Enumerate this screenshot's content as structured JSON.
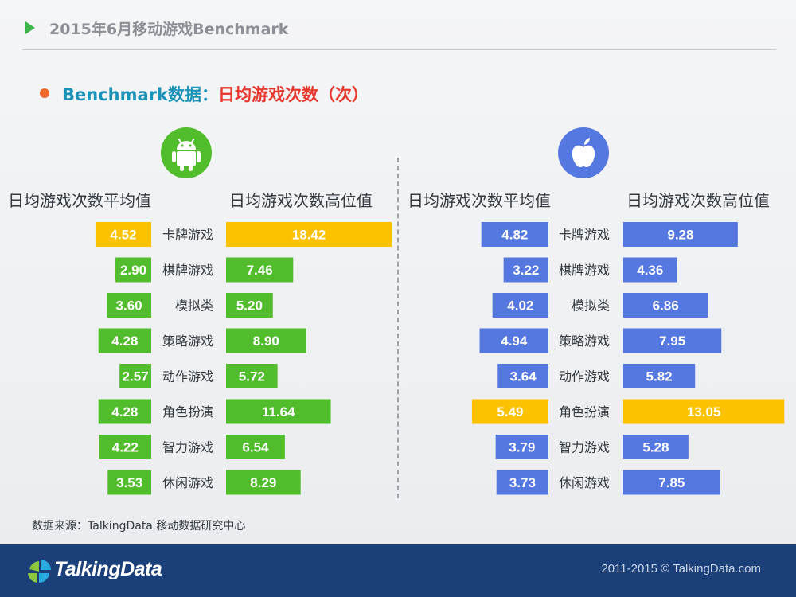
{
  "header": {
    "title": "2015年6月移动游戏Benchmark"
  },
  "subtitle": {
    "prefix": "Benchmark数据：",
    "metric": "日均游戏次数（次）"
  },
  "panels": {
    "android": {
      "icon": "android-icon",
      "avg_header": "日均游戏次数平均值",
      "high_header": "日均游戏次数高位值"
    },
    "ios": {
      "icon": "apple-icon",
      "avg_header": "日均游戏次数平均值",
      "high_header": "日均游戏次数高位值"
    }
  },
  "source": "数据来源：TalkingData 移动数据研究中心",
  "footer": {
    "brand": "TalkingData",
    "copyright": "2011-2015 © TalkingData.com"
  },
  "colors": {
    "android": "#52bd2c",
    "ios": "#5577e0",
    "highlight": "#fcc200",
    "header_accent": "#3bb54a",
    "subtitle_blue": "#1b93b8",
    "subtitle_red": "#e8392e",
    "footer_bg": "#1b3f78"
  },
  "chart_data": [
    {
      "type": "bar",
      "platform": "Android",
      "categories": [
        "卡牌游戏",
        "棋牌游戏",
        "模拟类",
        "策略游戏",
        "动作游戏",
        "角色扮演",
        "智力游戏",
        "休闲游戏"
      ],
      "series": [
        {
          "name": "日均游戏次数平均值",
          "values": [
            4.52,
            2.9,
            3.6,
            4.28,
            2.57,
            4.28,
            4.22,
            3.53
          ]
        },
        {
          "name": "日均游戏次数高位值",
          "values": [
            18.42,
            7.46,
            5.2,
            8.9,
            5.72,
            11.64,
            6.54,
            8.29
          ]
        }
      ],
      "highlight_category": "卡牌游戏"
    },
    {
      "type": "bar",
      "platform": "iOS",
      "categories": [
        "卡牌游戏",
        "棋牌游戏",
        "模拟类",
        "策略游戏",
        "动作游戏",
        "角色扮演",
        "智力游戏",
        "休闲游戏"
      ],
      "series": [
        {
          "name": "日均游戏次数平均值",
          "values": [
            4.82,
            3.22,
            4.02,
            4.94,
            3.64,
            5.49,
            3.79,
            3.73
          ]
        },
        {
          "name": "日均游戏次数高位值",
          "values": [
            9.28,
            4.36,
            6.86,
            7.95,
            5.82,
            13.05,
            5.28,
            7.85
          ]
        }
      ],
      "highlight_category": "角色扮演"
    }
  ]
}
